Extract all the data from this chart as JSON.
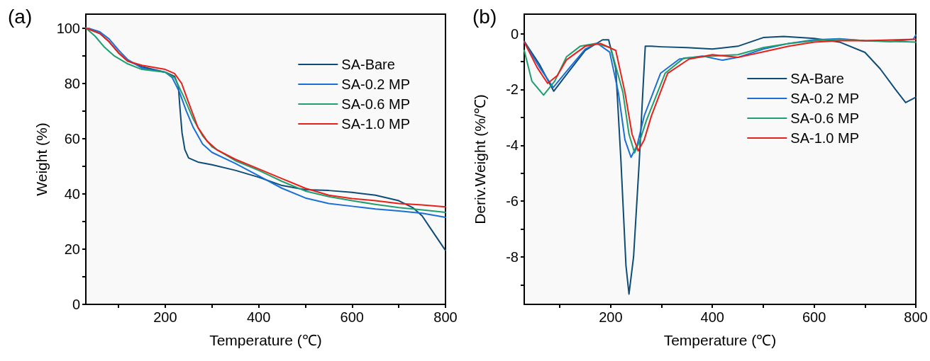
{
  "chart_data": [
    {
      "type": "line",
      "title": "(a)",
      "xlabel": "Temperature (℃)",
      "ylabel": "Weight (%)",
      "xlim": [
        30,
        800
      ],
      "ylim": [
        0,
        105
      ],
      "xticks": [
        {
          "value": 100,
          "label": null
        },
        200,
        {
          "value": 300,
          "label": null
        },
        400,
        {
          "value": 500,
          "label": null
        },
        600,
        {
          "value": 700,
          "label": null
        },
        800
      ],
      "yticks": [
        0,
        {
          "value": 10,
          "label": null
        },
        20,
        {
          "value": 30,
          "label": null
        },
        40,
        {
          "value": 50,
          "label": null
        },
        60,
        {
          "value": 70,
          "label": null
        },
        80,
        {
          "value": 90,
          "label": null
        },
        100
      ],
      "grid": false,
      "legend": "top right",
      "marker": "none",
      "line_style": "solid",
      "series": [
        {
          "name": "SA-Bare",
          "color": "#0e4c75",
          "x": [
            30,
            60,
            80,
            100,
            120,
            150,
            200,
            220,
            228,
            232,
            236,
            242,
            250,
            270,
            300,
            350,
            400,
            450,
            500,
            550,
            600,
            650,
            700,
            730,
            750,
            770,
            800
          ],
          "values": [
            100,
            98,
            95,
            91,
            88,
            86,
            84,
            82.5,
            79,
            70,
            62,
            56,
            53,
            51.5,
            50.5,
            48.5,
            46,
            43,
            41.5,
            41.2,
            40.5,
            39.5,
            37.5,
            35,
            32,
            27,
            19.5
          ]
        },
        {
          "name": "SA-0.2 MP",
          "color": "#1a6fd6",
          "x": [
            36,
            60,
            80,
            100,
            120,
            150,
            200,
            215,
            230,
            245,
            260,
            280,
            300,
            350,
            400,
            450,
            500,
            550,
            600,
            650,
            700,
            750,
            800
          ],
          "values": [
            99.9,
            98.6,
            96,
            92,
            88.5,
            85.5,
            84,
            82,
            77,
            70,
            64,
            58,
            55,
            51,
            46.5,
            42,
            38.5,
            36.5,
            35.5,
            34.5,
            33.8,
            33,
            31.5
          ]
        },
        {
          "name": "SA-0.6 MP",
          "color": "#1f9e6e",
          "x": [
            30,
            50,
            70,
            90,
            120,
            150,
            200,
            220,
            240,
            260,
            280,
            300,
            350,
            400,
            450,
            500,
            550,
            600,
            650,
            700,
            750,
            800
          ],
          "values": [
            100,
            97,
            93,
            90,
            87,
            85,
            84,
            82,
            75,
            67,
            61,
            57,
            52,
            48.5,
            44.5,
            41,
            39,
            37.5,
            36.2,
            35,
            34.2,
            33.3
          ]
        },
        {
          "name": "SA-1.0 MP",
          "color": "#e8201a",
          "x": [
            30,
            60,
            80,
            100,
            120,
            150,
            200,
            220,
            235,
            250,
            270,
            290,
            310,
            350,
            400,
            450,
            500,
            550,
            600,
            650,
            700,
            750,
            800
          ],
          "values": [
            100,
            98,
            95,
            91,
            88,
            86.5,
            85,
            83.5,
            80,
            73,
            64,
            59,
            56,
            52.5,
            49,
            45.5,
            42,
            39.5,
            38.3,
            37.5,
            36.5,
            36,
            35.3
          ]
        }
      ]
    },
    {
      "type": "line",
      "title": "(b)",
      "xlabel": "Temperature (℃)",
      "ylabel": "Deriv.Weight (%/℃)",
      "xlim": [
        30,
        800
      ],
      "ylim": [
        -9.7,
        0.7
      ],
      "xticks": [
        {
          "value": 100,
          "label": null
        },
        200,
        {
          "value": 300,
          "label": null
        },
        400,
        {
          "value": 500,
          "label": null
        },
        600,
        {
          "value": 700,
          "label": null
        },
        800
      ],
      "yticks": [
        {
          "value": -9,
          "label": null
        },
        -8,
        {
          "value": -7,
          "label": null
        },
        -6,
        {
          "value": -5,
          "label": null
        },
        -4,
        {
          "value": -3,
          "label": null
        },
        -2,
        {
          "value": -1,
          "label": null
        },
        0
      ],
      "grid": false,
      "legend": "top right",
      "marker": "none",
      "line_style": "solid",
      "series": [
        {
          "name": "SA-Bare",
          "color": "#0e4c75",
          "x": [
            30,
            60,
            88,
            120,
            150,
            184,
            196,
            210,
            220,
            230,
            236,
            245,
            256,
            262,
            268,
            280,
            300,
            350,
            400,
            450,
            500,
            540,
            600,
            650,
            700,
            730,
            760,
            780,
            800
          ],
          "values": [
            -0.27,
            -1.1,
            -2.06,
            -1.3,
            -0.6,
            -0.22,
            -0.22,
            -1.26,
            -4.5,
            -8.3,
            -9.33,
            -8.0,
            -4.64,
            -2.5,
            -0.45,
            -0.45,
            -0.47,
            -0.5,
            -0.55,
            -0.45,
            -0.14,
            -0.1,
            -0.17,
            -0.3,
            -0.67,
            -1.26,
            -2.0,
            -2.47,
            -2.28
          ]
        },
        {
          "name": "SA-0.2 MP",
          "color": "#1a6fd6",
          "x": [
            30,
            60,
            87,
            120,
            150,
            173,
            198,
            215,
            228,
            240,
            252,
            266,
            298,
            335,
            380,
            420,
            450,
            500,
            550,
            600,
            650,
            700,
            750,
            795,
            800
          ],
          "values": [
            -0.3,
            -1.2,
            -1.93,
            -1.2,
            -0.55,
            -0.34,
            -0.66,
            -2.1,
            -3.8,
            -4.43,
            -4.0,
            -2.94,
            -1.42,
            -0.91,
            -0.8,
            -0.95,
            -0.85,
            -0.55,
            -0.35,
            -0.22,
            -0.18,
            -0.25,
            -0.28,
            -0.2,
            -0.05
          ]
        },
        {
          "name": "SA-0.6 MP",
          "color": "#1f9e6e",
          "x": [
            30,
            45,
            68,
            90,
            113,
            140,
            170,
            200,
            224,
            236,
            247,
            258,
            270,
            307,
            344,
            400,
            450,
            500,
            550,
            600,
            650,
            700,
            800
          ],
          "values": [
            -0.6,
            -1.7,
            -2.2,
            -1.7,
            -0.83,
            -0.45,
            -0.35,
            -0.5,
            -2.1,
            -3.6,
            -4.27,
            -3.8,
            -3.12,
            -1.42,
            -0.87,
            -0.8,
            -0.75,
            -0.5,
            -0.35,
            -0.25,
            -0.2,
            -0.25,
            -0.3
          ]
        },
        {
          "name": "SA-1.0 MP",
          "color": "#e8201a",
          "x": [
            30,
            55,
            76,
            95,
            113,
            150,
            180,
            210,
            228,
            242,
            254,
            266,
            280,
            312,
            354,
            400,
            450,
            500,
            550,
            600,
            650,
            700,
            800
          ],
          "values": [
            -0.3,
            -1.2,
            -1.78,
            -1.5,
            -0.94,
            -0.45,
            -0.35,
            -0.6,
            -2.1,
            -3.6,
            -4.2,
            -3.8,
            -2.95,
            -1.42,
            -0.91,
            -0.75,
            -0.85,
            -0.65,
            -0.45,
            -0.3,
            -0.25,
            -0.25,
            -0.2
          ]
        }
      ]
    }
  ]
}
